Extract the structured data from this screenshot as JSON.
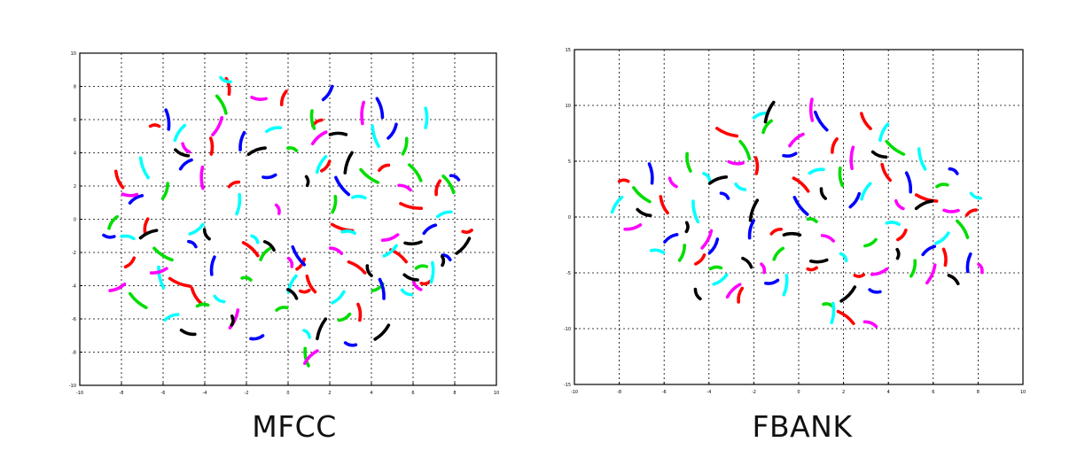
{
  "captions": {
    "left": "MFCC",
    "right": "FBANK"
  },
  "colors": [
    "#ff0000",
    "#00dd00",
    "#0000ff",
    "#00ffff",
    "#ff00ff",
    "#000000"
  ],
  "chart_data": [
    {
      "type": "scatter",
      "title": "MFCC",
      "xlabel": "",
      "ylabel": "",
      "xlim": [
        -10,
        10
      ],
      "ylim": [
        -10,
        10
      ],
      "grid": true,
      "xticks": [
        -10,
        -8,
        -6,
        -4,
        -2,
        0,
        2,
        4,
        6,
        8,
        10
      ],
      "yticks": [
        -10,
        -8,
        -6,
        -4,
        -2,
        0,
        2,
        4,
        6,
        8,
        10
      ],
      "xtick_labels": [
        "-10",
        "-8",
        "-6",
        "-4",
        "-2",
        "0",
        "2",
        "4",
        "6",
        "8",
        "10"
      ],
      "ytick_labels": [
        "-10",
        "-8",
        "-6",
        "-4",
        "-2",
        "0",
        "2",
        "4",
        "6",
        "8",
        "10"
      ],
      "series": [
        {
          "color": "#ff0000",
          "points": [
            [
              -6.4,
              5.6
            ],
            [
              -8.1,
              2.4
            ],
            [
              -7.6,
              -2.6
            ],
            [
              -5.2,
              -3.8
            ],
            [
              -3.7,
              4.4
            ],
            [
              -2.6,
              2.1
            ],
            [
              -1.8,
              -1.8
            ],
            [
              -0.2,
              7.3
            ],
            [
              0.8,
              -4.3
            ],
            [
              1.1,
              -3.9
            ],
            [
              1.8,
              3.2
            ],
            [
              2.6,
              -0.5
            ],
            [
              3.4,
              -5.6
            ],
            [
              4.6,
              3.1
            ],
            [
              5.3,
              -2.2
            ],
            [
              7.2,
              1.9
            ],
            [
              8.6,
              -0.7
            ],
            [
              -4.4,
              -4.6
            ],
            [
              0.6,
              -2.7
            ],
            [
              5.9,
              0.8
            ],
            [
              -2.9,
              8.0
            ],
            [
              1.4,
              5.8
            ],
            [
              3.3,
              -2.9
            ],
            [
              -6.8,
              -0.4
            ],
            [
              6.6,
              -3.8
            ]
          ]
        },
        {
          "color": "#00dd00",
          "points": [
            [
              -7.2,
              -4.9
            ],
            [
              -5.9,
              1.7
            ],
            [
              -4.1,
              -5.2
            ],
            [
              -3.2,
              6.9
            ],
            [
              -1.1,
              -2.1
            ],
            [
              0.2,
              4.2
            ],
            [
              1.2,
              6.0
            ],
            [
              2.7,
              -5.9
            ],
            [
              3.9,
              2.6
            ],
            [
              5.6,
              4.4
            ],
            [
              6.4,
              -2.9
            ],
            [
              7.7,
              2.1
            ],
            [
              -8.4,
              -0.2
            ],
            [
              -2.0,
              -3.6
            ],
            [
              0.9,
              -8.3
            ],
            [
              4.3,
              -4.1
            ],
            [
              -6.0,
              -2.1
            ],
            [
              2.2,
              0.9
            ],
            [
              -0.3,
              -5.4
            ],
            [
              6.1,
              2.8
            ]
          ]
        },
        {
          "color": "#0000ff",
          "points": [
            [
              -5.8,
              6.0
            ],
            [
              -7.3,
              1.2
            ],
            [
              -4.6,
              -1.5
            ],
            [
              -2.2,
              4.7
            ],
            [
              -0.9,
              2.6
            ],
            [
              0.5,
              -2.2
            ],
            [
              1.9,
              7.6
            ],
            [
              3.0,
              -7.5
            ],
            [
              4.5,
              -4.2
            ],
            [
              6.8,
              -0.6
            ],
            [
              7.6,
              -2.3
            ],
            [
              -3.6,
              -2.8
            ],
            [
              -1.5,
              -7.1
            ],
            [
              2.6,
              2.0
            ],
            [
              5.0,
              5.3
            ],
            [
              -8.6,
              -1.0
            ],
            [
              4.4,
              6.7
            ],
            [
              -4.9,
              3.3
            ],
            [
              8.0,
              2.5
            ]
          ]
        },
        {
          "color": "#00ffff",
          "points": [
            [
              -5.2,
              5.2
            ],
            [
              -7.7,
              -1.1
            ],
            [
              -6.1,
              -3.5
            ],
            [
              -4.4,
              -0.6
            ],
            [
              -3.3,
              -4.8
            ],
            [
              -2.4,
              0.9
            ],
            [
              -0.7,
              5.4
            ],
            [
              0.9,
              -6.9
            ],
            [
              1.6,
              3.3
            ],
            [
              2.9,
              -0.8
            ],
            [
              4.2,
              5.0
            ],
            [
              4.9,
              -1.9
            ],
            [
              5.7,
              -4.4
            ],
            [
              6.9,
              -3.2
            ],
            [
              7.5,
              0.3
            ],
            [
              -1.6,
              -1.2
            ],
            [
              0.2,
              -3.9
            ],
            [
              3.4,
              1.3
            ],
            [
              -6.9,
              3.1
            ],
            [
              2.4,
              -4.7
            ],
            [
              -3.0,
              8.4
            ],
            [
              6.6,
              6.1
            ],
            [
              -5.6,
              -5.9
            ]
          ]
        },
        {
          "color": "#ff00ff",
          "points": [
            [
              -6.2,
              -3.1
            ],
            [
              -4.9,
              4.3
            ],
            [
              -3.4,
              5.6
            ],
            [
              -1.4,
              7.3
            ],
            [
              -0.5,
              0.6
            ],
            [
              1.5,
              4.9
            ],
            [
              2.3,
              -1.9
            ],
            [
              3.6,
              6.4
            ],
            [
              4.9,
              -1.1
            ],
            [
              6.2,
              -4.0
            ],
            [
              -2.6,
              -6.0
            ],
            [
              -7.6,
              1.5
            ],
            [
              0.1,
              -2.6
            ],
            [
              1.1,
              -8.3
            ],
            [
              5.6,
              1.9
            ],
            [
              -4.1,
              2.5
            ],
            [
              -8.2,
              -4.1
            ]
          ]
        },
        {
          "color": "#000000",
          "points": [
            [
              -5.1,
              4.0
            ],
            [
              -2.7,
              -6.1
            ],
            [
              -1.5,
              4.1
            ],
            [
              0.2,
              -4.5
            ],
            [
              1.6,
              -6.6
            ],
            [
              2.4,
              5.1
            ],
            [
              3.9,
              -3.1
            ],
            [
              4.5,
              -6.8
            ],
            [
              5.9,
              -3.5
            ],
            [
              7.4,
              -2.5
            ],
            [
              -6.7,
              -0.9
            ],
            [
              -0.9,
              -1.6
            ],
            [
              2.9,
              3.4
            ],
            [
              6.0,
              -1.4
            ],
            [
              -3.9,
              -0.9
            ],
            [
              8.4,
              -1.6
            ],
            [
              -4.8,
              -6.8
            ],
            [
              0.9,
              2.3
            ]
          ]
        }
      ]
    },
    {
      "type": "scatter",
      "title": "FBANK",
      "xlabel": "",
      "ylabel": "",
      "xlim": [
        -10,
        10
      ],
      "ylim": [
        -15,
        15
      ],
      "grid": true,
      "xticks": [
        -10,
        -8,
        -6,
        -4,
        -2,
        0,
        2,
        4,
        6,
        8,
        10
      ],
      "yticks": [
        -15,
        -10,
        -5,
        0,
        5,
        10,
        15
      ],
      "xtick_labels": [
        "-10",
        "-8",
        "-6",
        "-4",
        "-2",
        "0",
        "2",
        "4",
        "6",
        "8",
        "10"
      ],
      "ytick_labels": [
        "-15",
        "-10",
        "-5",
        "0",
        "5",
        "10",
        "15"
      ],
      "series": [
        {
          "color": "#ff0000",
          "points": [
            [
              -7.8,
              3.2
            ],
            [
              -6.0,
              1.1
            ],
            [
              -4.4,
              -3.8
            ],
            [
              -3.2,
              7.6
            ],
            [
              -1.9,
              4.6
            ],
            [
              -1.0,
              -1.3
            ],
            [
              0.1,
              2.9
            ],
            [
              1.6,
              6.4
            ],
            [
              2.7,
              -5.2
            ],
            [
              3.9,
              4.0
            ],
            [
              4.6,
              -1.6
            ],
            [
              5.7,
              1.7
            ],
            [
              6.5,
              -3.6
            ],
            [
              7.7,
              0.4
            ],
            [
              2.1,
              -9.0
            ],
            [
              -2.6,
              -7.0
            ],
            [
              0.6,
              -4.6
            ],
            [
              3.0,
              8.6
            ]
          ]
        },
        {
          "color": "#00dd00",
          "points": [
            [
              -7.0,
              2.0
            ],
            [
              -5.2,
              -3.2
            ],
            [
              -3.7,
              -4.6
            ],
            [
              -2.4,
              6.0
            ],
            [
              -0.9,
              -3.3
            ],
            [
              0.6,
              -0.3
            ],
            [
              1.9,
              3.6
            ],
            [
              3.2,
              -2.3
            ],
            [
              4.3,
              6.2
            ],
            [
              5.1,
              -4.6
            ],
            [
              6.4,
              2.8
            ],
            [
              7.3,
              -1.1
            ],
            [
              -1.4,
              8.1
            ],
            [
              1.3,
              -7.9
            ],
            [
              -4.9,
              4.9
            ]
          ]
        },
        {
          "color": "#0000ff",
          "points": [
            [
              -6.6,
              3.9
            ],
            [
              -5.7,
              -1.9
            ],
            [
              -3.3,
              1.9
            ],
            [
              -2.1,
              -1.1
            ],
            [
              -0.4,
              5.6
            ],
            [
              1.0,
              8.6
            ],
            [
              2.5,
              1.5
            ],
            [
              3.4,
              -6.6
            ],
            [
              4.9,
              3.1
            ],
            [
              5.8,
              -3.0
            ],
            [
              6.9,
              4.1
            ],
            [
              7.6,
              -4.1
            ],
            [
              -1.2,
              -5.8
            ],
            [
              0.1,
              1.0
            ],
            [
              -3.8,
              -2.6
            ]
          ]
        },
        {
          "color": "#00ffff",
          "points": [
            [
              -8.1,
              1.1
            ],
            [
              -6.3,
              -3.1
            ],
            [
              -4.6,
              0.5
            ],
            [
              -3.5,
              -5.6
            ],
            [
              -2.6,
              2.7
            ],
            [
              -0.6,
              -6.1
            ],
            [
              0.8,
              4.1
            ],
            [
              2.0,
              -3.6
            ],
            [
              3.0,
              2.3
            ],
            [
              4.2,
              -0.6
            ],
            [
              5.5,
              5.2
            ],
            [
              6.4,
              -1.9
            ],
            [
              7.9,
              1.9
            ],
            [
              1.5,
              -8.6
            ],
            [
              -1.7,
              9.1
            ],
            [
              -4.1,
              3.6
            ],
            [
              3.8,
              7.6
            ]
          ]
        },
        {
          "color": "#ff00ff",
          "points": [
            [
              -7.4,
              -0.9
            ],
            [
              -5.6,
              3.1
            ],
            [
              -4.1,
              -2.0
            ],
            [
              -2.8,
              4.9
            ],
            [
              -1.6,
              -4.6
            ],
            [
              -0.1,
              6.9
            ],
            [
              1.3,
              -1.9
            ],
            [
              2.4,
              5.3
            ],
            [
              3.6,
              -4.9
            ],
            [
              4.5,
              1.1
            ],
            [
              5.9,
              -5.1
            ],
            [
              6.8,
              0.6
            ],
            [
              8.1,
              -4.6
            ],
            [
              -2.9,
              -6.6
            ],
            [
              3.2,
              -9.6
            ],
            [
              0.6,
              9.6
            ]
          ]
        },
        {
          "color": "#000000",
          "points": [
            [
              -6.9,
              0.4
            ],
            [
              -5.0,
              -0.9
            ],
            [
              -3.6,
              3.3
            ],
            [
              -2.3,
              -4.1
            ],
            [
              -1.3,
              9.4
            ],
            [
              -0.3,
              -1.6
            ],
            [
              1.1,
              2.1
            ],
            [
              2.2,
              -6.9
            ],
            [
              3.6,
              5.6
            ],
            [
              4.4,
              -3.3
            ],
            [
              5.6,
              1.1
            ],
            [
              6.9,
              -5.6
            ],
            [
              -2.0,
              0.6
            ],
            [
              0.9,
              -3.9
            ],
            [
              -4.5,
              -6.9
            ]
          ]
        }
      ]
    }
  ]
}
